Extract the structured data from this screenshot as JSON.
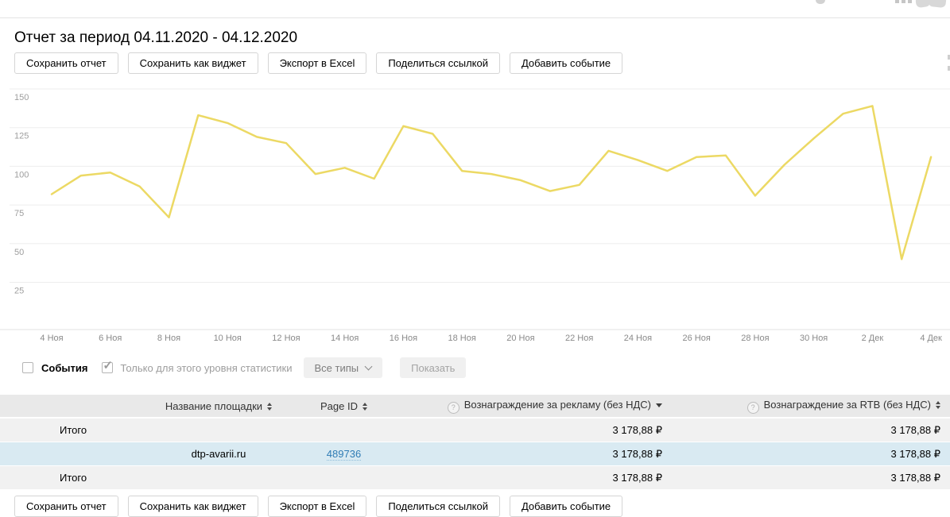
{
  "page": {
    "title": "Отчет за период 04.11.2020 - 04.12.2020"
  },
  "actions": {
    "save_report": "Сохранить отчет",
    "save_widget": "Сохранить как виджет",
    "export_excel": "Экспорт в Excel",
    "share_link": "Поделиться ссылкой",
    "add_event": "Добавить событие"
  },
  "chart_data": {
    "type": "line",
    "title": "",
    "period": "04.11.2020 - 04.12.2020",
    "x": [
      "4 Ноя",
      "5 Ноя",
      "6 Ноя",
      "7 Ноя",
      "8 Ноя",
      "9 Ноя",
      "10 Ноя",
      "11 Ноя",
      "12 Ноя",
      "13 Ноя",
      "14 Ноя",
      "15 Ноя",
      "16 Ноя",
      "17 Ноя",
      "18 Ноя",
      "19 Ноя",
      "20 Ноя",
      "21 Ноя",
      "22 Ноя",
      "23 Ноя",
      "24 Ноя",
      "25 Ноя",
      "26 Ноя",
      "27 Ноя",
      "28 Ноя",
      "29 Ноя",
      "30 Ноя",
      "1 Дек",
      "2 Дек",
      "3 Дек",
      "4 Дек"
    ],
    "values": [
      82,
      94,
      96,
      87,
      67,
      133,
      128,
      119,
      115,
      95,
      99,
      92,
      126,
      121,
      97,
      95,
      91,
      84,
      88,
      110,
      104,
      97,
      106,
      107,
      81,
      101,
      118,
      134,
      139,
      40,
      106
    ],
    "xtick_labels": [
      "4 Ноя",
      "6 Ноя",
      "8 Ноя",
      "10 Ноя",
      "12 Ноя",
      "14 Ноя",
      "16 Ноя",
      "18 Ноя",
      "20 Ноя",
      "22 Ноя",
      "24 Ноя",
      "26 Ноя",
      "28 Ноя",
      "30 Ноя",
      "2 Дек",
      "4 Дек"
    ],
    "yticks": [
      25,
      50,
      75,
      100,
      125,
      150
    ],
    "ylim": [
      0,
      150
    ],
    "line_color": "#ecd964",
    "grid": true,
    "legend": false
  },
  "events_bar": {
    "events_label": "События",
    "events_checked": false,
    "level_label": "Только для этого уровня статистики",
    "level_checked": true,
    "type_filter_label": "Все типы",
    "show_label": "Показать"
  },
  "table": {
    "headers": {
      "name": "Название площадки",
      "page_id": "Page ID",
      "reward_ads": "Вознаграждение за рекламу (без НДС)",
      "reward_rtb": "Вознаграждение за RTB (без НДС)"
    },
    "sort": {
      "reward_ads": "desc"
    },
    "rows": [
      {
        "label": "Итого",
        "name": "",
        "page_id": "",
        "reward_ads": "3 178,88 ₽",
        "reward_rtb": "3 178,88 ₽"
      },
      {
        "label": "",
        "name": "dtp-avarii.ru",
        "page_id": "489736",
        "reward_ads": "3 178,88 ₽",
        "reward_rtb": "3 178,88 ₽"
      },
      {
        "label": "Итого",
        "name": "",
        "page_id": "",
        "reward_ads": "3 178,88 ₽",
        "reward_rtb": "3 178,88 ₽"
      }
    ]
  }
}
